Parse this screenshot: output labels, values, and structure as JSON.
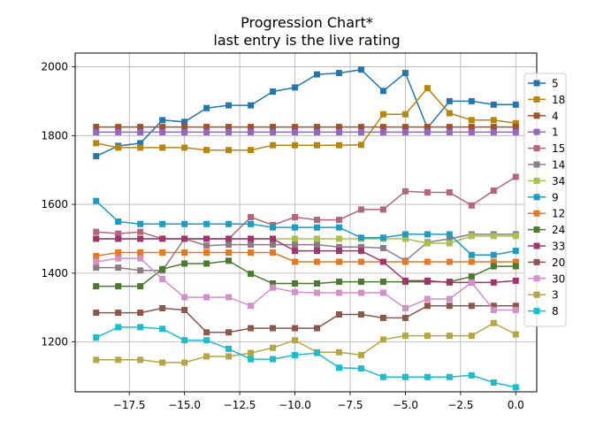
{
  "chart_data": {
    "type": "line",
    "title": "Progression Chart*",
    "subtitle": "last entry is the live rating",
    "xlabel": "",
    "ylabel": "",
    "xlim": [
      -19.95,
      0.95
    ],
    "ylim": [
      1055,
      2040
    ],
    "grid": true,
    "legend_placement": "right",
    "marker": "square",
    "x_ticks": [
      -17.5,
      -15.0,
      -12.5,
      -10.0,
      -7.5,
      -5.0,
      -2.5,
      0.0
    ],
    "x_tick_labels": [
      "−17.5",
      "−15.0",
      "−12.5",
      "−10.0",
      "−7.5",
      "−5.0",
      "−2.5",
      "0.0"
    ],
    "y_ticks": [
      1200,
      1400,
      1600,
      1800,
      2000
    ],
    "y_tick_labels": [
      "1200",
      "1400",
      "1600",
      "1800",
      "2000"
    ],
    "x": [
      -19,
      -18,
      -17,
      -16,
      -15,
      -14,
      -13,
      -12,
      -11,
      -10,
      -9,
      -8,
      -7,
      -6,
      -5,
      -4,
      -3,
      -2,
      -1,
      0
    ],
    "series": [
      {
        "name": "5",
        "color": "#1f77b4",
        "values": [
          1740,
          1770,
          1778,
          1845,
          1840,
          1880,
          1888,
          1888,
          1928,
          1940,
          1978,
          1982,
          1992,
          1930,
          1982,
          1822,
          1900,
          1900,
          1890,
          1890
        ]
      },
      {
        "name": "18",
        "color": "#b8860b",
        "values": [
          1778,
          1765,
          1765,
          1765,
          1765,
          1758,
          1758,
          1758,
          1772,
          1772,
          1772,
          1772,
          1773,
          1862,
          1862,
          1938,
          1865,
          1845,
          1845,
          1836
        ]
      },
      {
        "name": "4",
        "color": "#a0522d",
        "values": [
          1825,
          1825,
          1825,
          1825,
          1825,
          1825,
          1825,
          1825,
          1825,
          1825,
          1825,
          1825,
          1825,
          1825,
          1825,
          1825,
          1825,
          1825,
          1825,
          1825
        ]
      },
      {
        "name": "1",
        "color": "#9467bd",
        "values": [
          1810,
          1810,
          1810,
          1810,
          1810,
          1810,
          1810,
          1810,
          1810,
          1810,
          1810,
          1810,
          1810,
          1810,
          1810,
          1810,
          1810,
          1810,
          1810,
          1810
        ]
      },
      {
        "name": "15",
        "color": "#b5647a",
        "values": [
          1520,
          1515,
          1520,
          1500,
          1500,
          1500,
          1500,
          1563,
          1540,
          1563,
          1555,
          1555,
          1585,
          1585,
          1638,
          1635,
          1635,
          1597,
          1640,
          1680
        ]
      },
      {
        "name": "14",
        "color": "#8c7b85",
        "values": [
          1416,
          1416,
          1408,
          1408,
          1500,
          1480,
          1483,
          1483,
          1483,
          1483,
          1483,
          1476,
          1476,
          1473,
          1436,
          1490,
          1500,
          1513,
          1513,
          1513
        ]
      },
      {
        "name": "34",
        "color": "#a7c44a",
        "values": [
          1500,
          1500,
          1500,
          1500,
          1500,
          1500,
          1500,
          1500,
          1500,
          1500,
          1500,
          1500,
          1500,
          1500,
          1500,
          1487,
          1487,
          1508,
          1508,
          1508
        ]
      },
      {
        "name": "9",
        "color": "#1a9dc4",
        "values": [
          1610,
          1550,
          1543,
          1543,
          1543,
          1543,
          1543,
          1543,
          1533,
          1533,
          1533,
          1533,
          1503,
          1503,
          1513,
          1513,
          1513,
          1453,
          1453,
          1465
        ]
      },
      {
        "name": "12",
        "color": "#e87722",
        "values": [
          1450,
          1460,
          1460,
          1460,
          1460,
          1460,
          1460,
          1460,
          1460,
          1433,
          1433,
          1433,
          1433,
          1433,
          1433,
          1433,
          1433,
          1433,
          1433,
          1433
        ]
      },
      {
        "name": "24",
        "color": "#4a7a2c",
        "values": [
          1362,
          1362,
          1362,
          1412,
          1428,
          1428,
          1436,
          1398,
          1370,
          1370,
          1370,
          1375,
          1375,
          1375,
          1375,
          1375,
          1375,
          1390,
          1420,
          1420
        ]
      },
      {
        "name": "33",
        "color": "#a3346b",
        "values": [
          1500,
          1500,
          1500,
          1500,
          1500,
          1500,
          1500,
          1500,
          1500,
          1465,
          1465,
          1465,
          1465,
          1433,
          1378,
          1378,
          1373,
          1373,
          1373,
          1378
        ]
      },
      {
        "name": "20",
        "color": "#8c564b",
        "values": [
          1285,
          1285,
          1285,
          1298,
          1293,
          1228,
          1228,
          1240,
          1240,
          1240,
          1240,
          1280,
          1280,
          1270,
          1270,
          1305,
          1305,
          1305,
          1305,
          1305
        ]
      },
      {
        "name": "30",
        "color": "#d48fc9",
        "values": [
          1433,
          1443,
          1443,
          1383,
          1330,
          1330,
          1330,
          1305,
          1358,
          1345,
          1343,
          1343,
          1343,
          1343,
          1298,
          1325,
          1325,
          1373,
          1293,
          1293
        ]
      },
      {
        "name": "3",
        "color": "#b5a642",
        "values": [
          1148,
          1148,
          1148,
          1140,
          1140,
          1158,
          1158,
          1168,
          1183,
          1205,
          1170,
          1170,
          1162,
          1207,
          1218,
          1218,
          1218,
          1218,
          1255,
          1222
        ]
      },
      {
        "name": "8",
        "color": "#17becf",
        "values": [
          1213,
          1243,
          1243,
          1238,
          1205,
          1205,
          1180,
          1150,
          1150,
          1162,
          1168,
          1125,
          1123,
          1098,
          1098,
          1098,
          1098,
          1103,
          1082,
          1068
        ]
      }
    ]
  }
}
